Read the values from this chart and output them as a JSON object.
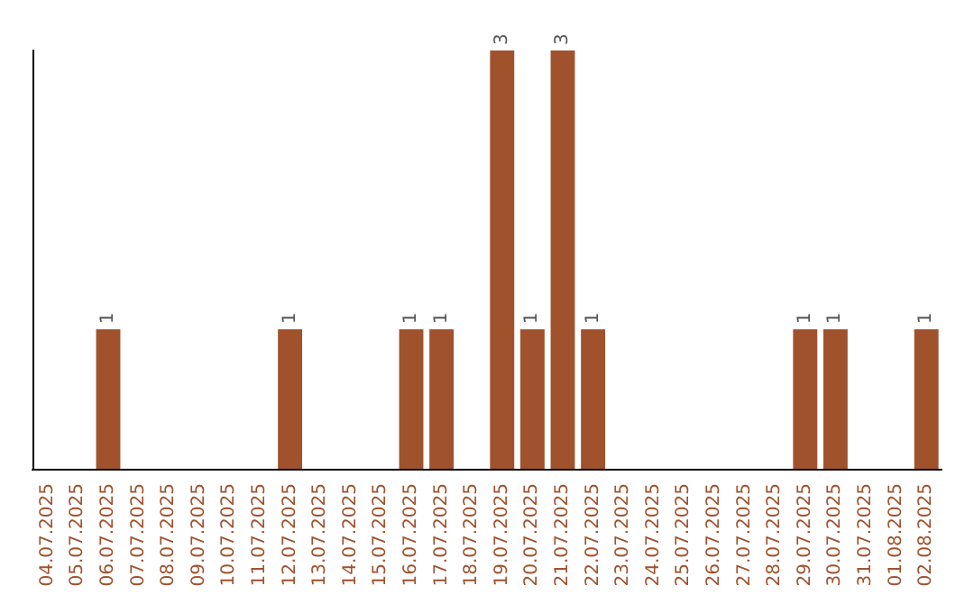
{
  "chart_data": {
    "type": "bar",
    "categories": [
      "04.07.2025",
      "05.07.2025",
      "06.07.2025",
      "07.07.2025",
      "08.07.2025",
      "09.07.2025",
      "10.07.2025",
      "11.07.2025",
      "12.07.2025",
      "13.07.2025",
      "14.07.2025",
      "15.07.2025",
      "16.07.2025",
      "17.07.2025",
      "18.07.2025",
      "19.07.2025",
      "20.07.2025",
      "21.07.2025",
      "22.07.2025",
      "23.07.2025",
      "24.07.2025",
      "25.07.2025",
      "26.07.2025",
      "27.07.2025",
      "28.07.2025",
      "29.07.2025",
      "30.07.2025",
      "31.07.2025",
      "01.08.2025",
      "02.08.2025"
    ],
    "values": [
      0,
      0,
      1,
      0,
      0,
      0,
      0,
      0,
      1,
      0,
      0,
      0,
      1,
      1,
      0,
      3,
      1,
      3,
      1,
      0,
      0,
      0,
      0,
      0,
      0,
      1,
      1,
      0,
      0,
      1
    ],
    "value_labels": [
      null,
      null,
      "1",
      null,
      null,
      null,
      null,
      null,
      "1",
      null,
      null,
      null,
      "1",
      "1",
      null,
      "3",
      "1",
      "3",
      "1",
      null,
      null,
      null,
      null,
      null,
      null,
      "1",
      "1",
      null,
      null,
      "1"
    ],
    "color": "#a0522d",
    "tick_labels": "x"
  }
}
